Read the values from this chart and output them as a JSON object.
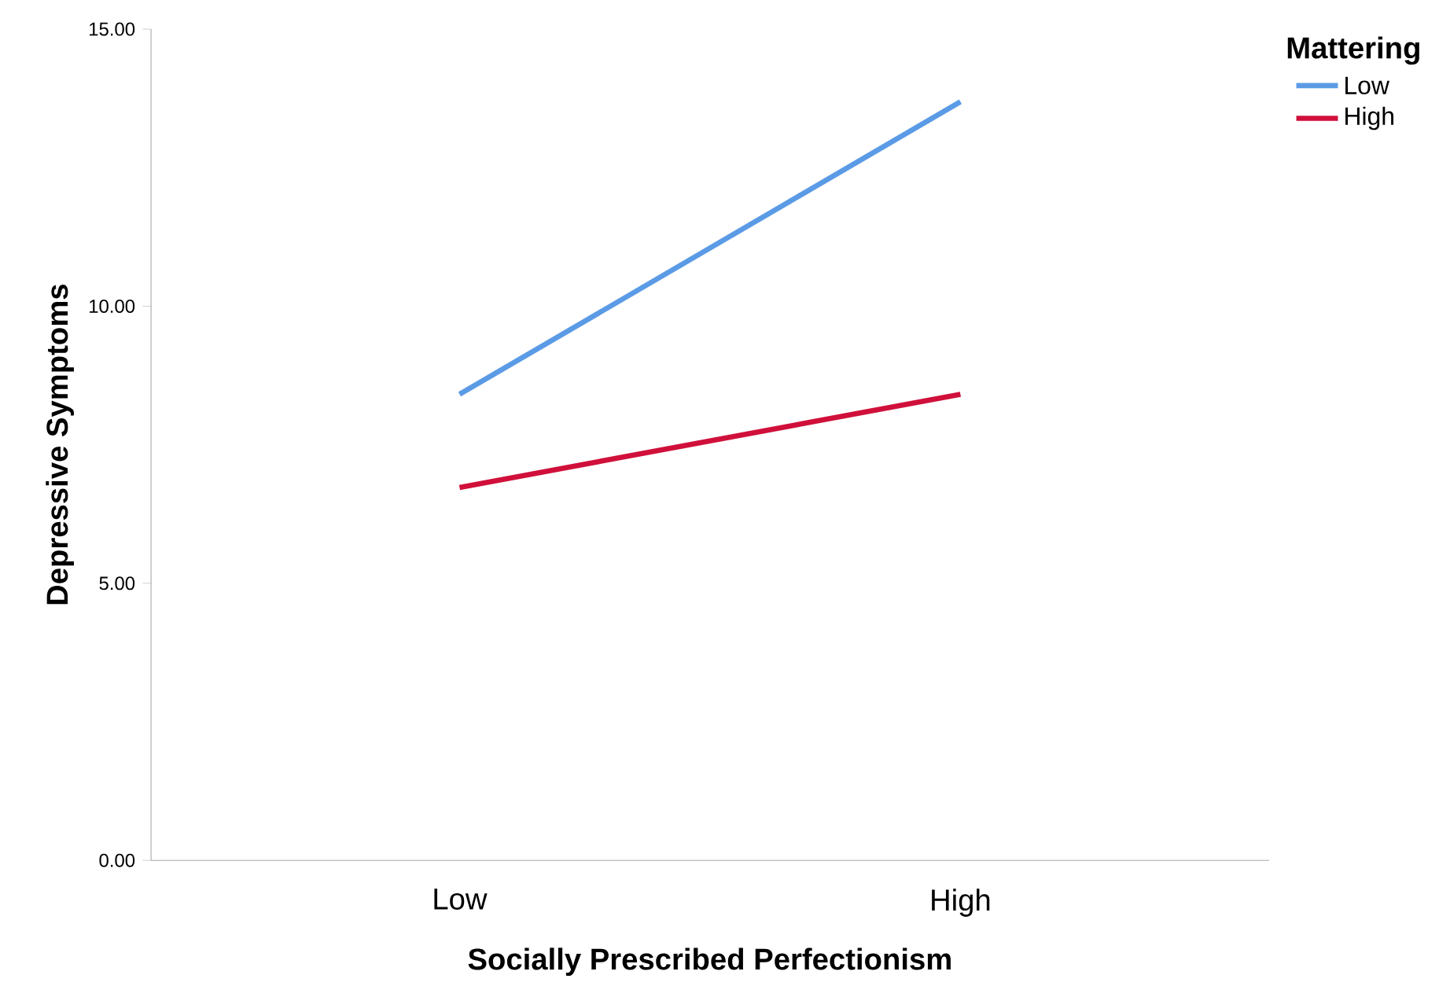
{
  "chart_data": {
    "type": "line",
    "xlabel": "Socially Prescribed Perfectionism",
    "ylabel": "Depressive Symptoms",
    "legend_title": "Mattering",
    "categories": [
      "Low",
      "High"
    ],
    "series": [
      {
        "name": "Low",
        "color": "#5b9be6",
        "values": [
          8.41,
          13.69
        ]
      },
      {
        "name": "High",
        "color": "#d0103a",
        "values": [
          6.73,
          8.41
        ]
      }
    ],
    "ylim": [
      0,
      15
    ],
    "yticks": [
      {
        "value": 0,
        "label": "0.00"
      },
      {
        "value": 5,
        "label": "5.00"
      },
      {
        "value": 10,
        "label": "10.00"
      },
      {
        "value": 15,
        "label": "15.00"
      }
    ],
    "legend": "top right",
    "grid": false,
    "marker": "none",
    "line_style": "solid"
  }
}
